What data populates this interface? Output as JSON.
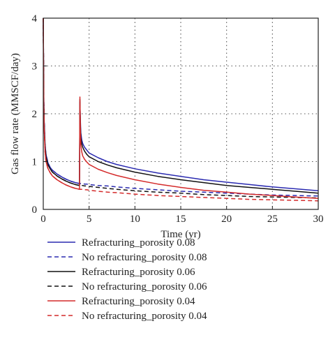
{
  "chart_data": {
    "type": "line",
    "title": "",
    "xlabel": "Time (yr)",
    "ylabel": "Gas flow rate (MMSCF/day)",
    "xlim": [
      0,
      30
    ],
    "ylim": [
      0,
      4
    ],
    "x_ticks": [
      0,
      5,
      10,
      15,
      20,
      25,
      30
    ],
    "y_ticks": [
      0,
      1,
      2,
      3,
      4
    ],
    "grid": true,
    "legend_position": "bottom",
    "x": [
      0,
      0.05,
      0.1,
      0.2,
      0.3,
      0.5,
      0.75,
      1,
      1.5,
      2,
      2.5,
      3,
      3.5,
      3.95,
      4.0,
      4.05,
      4.1,
      4.2,
      4.3,
      4.5,
      4.75,
      5,
      6,
      7,
      8,
      10,
      12.5,
      15,
      17.5,
      20,
      22.5,
      25,
      27.5,
      30
    ],
    "series": [
      {
        "name": "Refracturing_porosity 0.08",
        "color": "#2a2ab0",
        "dash": "solid",
        "values": [
          4.0,
          2.4,
          1.85,
          1.35,
          1.15,
          0.98,
          0.88,
          0.82,
          0.74,
          0.68,
          0.63,
          0.59,
          0.56,
          0.54,
          2.25,
          1.85,
          1.6,
          1.45,
          1.38,
          1.3,
          1.24,
          1.18,
          1.08,
          1.0,
          0.94,
          0.85,
          0.76,
          0.69,
          0.62,
          0.57,
          0.52,
          0.47,
          0.43,
          0.39
        ]
      },
      {
        "name": "No refracturing_porosity 0.08",
        "color": "#2a2ab0",
        "dash": "dashed",
        "values": [
          4.0,
          2.4,
          1.85,
          1.35,
          1.15,
          0.98,
          0.88,
          0.82,
          0.74,
          0.68,
          0.63,
          0.59,
          0.56,
          0.54,
          0.54,
          0.54,
          0.54,
          0.54,
          0.54,
          0.53,
          0.53,
          0.52,
          0.5,
          0.49,
          0.47,
          0.44,
          0.41,
          0.38,
          0.36,
          0.34,
          0.32,
          0.3,
          0.29,
          0.28
        ]
      },
      {
        "name": "Refracturing_porosity 0.06",
        "color": "#111111",
        "dash": "solid",
        "values": [
          4.0,
          2.3,
          1.8,
          1.3,
          1.1,
          0.94,
          0.85,
          0.78,
          0.7,
          0.64,
          0.59,
          0.55,
          0.52,
          0.5,
          2.3,
          1.75,
          1.5,
          1.37,
          1.3,
          1.22,
          1.15,
          1.1,
          1.0,
          0.93,
          0.87,
          0.78,
          0.69,
          0.62,
          0.56,
          0.5,
          0.46,
          0.42,
          0.38,
          0.34
        ]
      },
      {
        "name": "No refracturing_porosity 0.06",
        "color": "#111111",
        "dash": "dashed",
        "values": [
          4.0,
          2.3,
          1.8,
          1.3,
          1.1,
          0.94,
          0.85,
          0.78,
          0.7,
          0.64,
          0.59,
          0.55,
          0.52,
          0.5,
          0.5,
          0.5,
          0.5,
          0.5,
          0.5,
          0.49,
          0.49,
          0.48,
          0.46,
          0.44,
          0.42,
          0.39,
          0.36,
          0.34,
          0.31,
          0.29,
          0.27,
          0.26,
          0.25,
          0.24
        ]
      },
      {
        "name": "Refracturing_porosity 0.04",
        "color": "#d42a2a",
        "dash": "solid",
        "values": [
          4.0,
          2.2,
          1.7,
          1.2,
          1.0,
          0.86,
          0.77,
          0.7,
          0.62,
          0.56,
          0.51,
          0.47,
          0.44,
          0.42,
          2.35,
          1.6,
          1.35,
          1.2,
          1.12,
          1.05,
          0.99,
          0.94,
          0.84,
          0.77,
          0.71,
          0.62,
          0.53,
          0.46,
          0.4,
          0.36,
          0.32,
          0.29,
          0.26,
          0.23
        ]
      },
      {
        "name": "No refracturing_porosity 0.04",
        "color": "#d42a2a",
        "dash": "dashed",
        "values": [
          4.0,
          2.2,
          1.7,
          1.2,
          1.0,
          0.86,
          0.77,
          0.7,
          0.62,
          0.56,
          0.51,
          0.47,
          0.44,
          0.42,
          0.42,
          0.42,
          0.42,
          0.42,
          0.42,
          0.41,
          0.41,
          0.4,
          0.38,
          0.36,
          0.35,
          0.32,
          0.29,
          0.27,
          0.25,
          0.23,
          0.21,
          0.2,
          0.19,
          0.18
        ]
      }
    ]
  }
}
